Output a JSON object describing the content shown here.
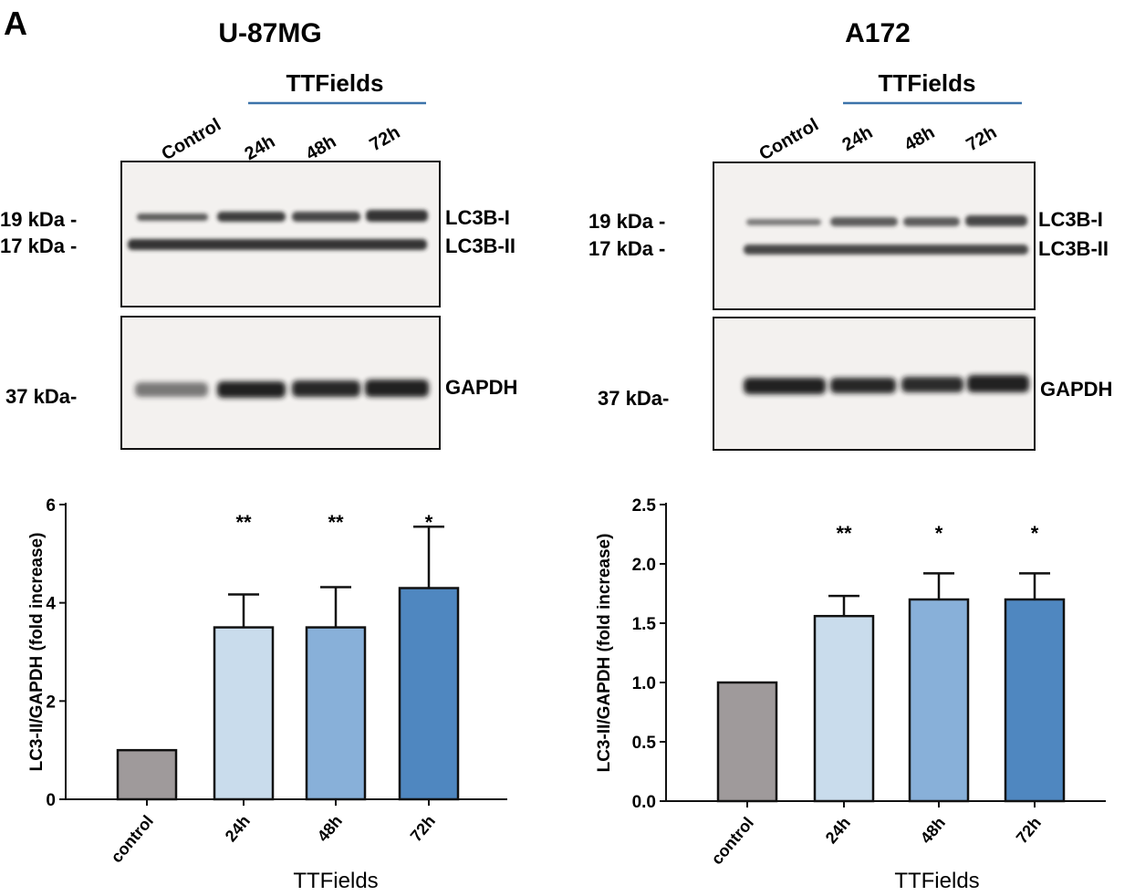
{
  "panel_label": "A",
  "blots": [
    {
      "cell_line": "U-87MG",
      "group_label": "TTFields",
      "lanes": [
        "Control",
        "24h",
        "48h",
        "72h"
      ],
      "markers": [
        "19 kDa -",
        "17 kDa -",
        "37 kDa-"
      ],
      "band_labels": [
        "LC3B-I",
        "LC3B-II",
        "GAPDH"
      ]
    },
    {
      "cell_line": "A172",
      "group_label": "TTFields",
      "lanes": [
        "Control",
        "24h",
        "48h",
        "72h"
      ],
      "markers": [
        "19 kDa -",
        "17 kDa -",
        "37 kDa-"
      ],
      "band_labels": [
        "LC3B-I",
        "LC3B-II",
        "GAPDH"
      ]
    }
  ],
  "chart_data": [
    {
      "type": "bar",
      "categories": [
        "control",
        "24h",
        "48h",
        "72h"
      ],
      "values": [
        1.0,
        3.5,
        3.5,
        4.3
      ],
      "errors": [
        0,
        0.67,
        0.82,
        1.25
      ],
      "significance": [
        "",
        "**",
        "**",
        "*"
      ],
      "colors": [
        "#9f9a9b",
        "#c9dcec",
        "#88b0d9",
        "#4f87c0"
      ],
      "xlabel": "TTFields",
      "ylabel": "LC3-II/GAPDH (fold increase)",
      "ylim": [
        0,
        6
      ],
      "yticks": [
        "0",
        "2",
        "4",
        "6"
      ],
      "ytick_values": [
        0,
        2,
        4,
        6
      ],
      "grid": false
    },
    {
      "type": "bar",
      "categories": [
        "control",
        "24h",
        "48h",
        "72h"
      ],
      "values": [
        1.0,
        1.56,
        1.7,
        1.7
      ],
      "errors": [
        0,
        0.17,
        0.22,
        0.22
      ],
      "significance": [
        "",
        "**",
        "*",
        "*"
      ],
      "colors": [
        "#9f9a9b",
        "#c9dcec",
        "#88b0d9",
        "#4f87c0"
      ],
      "xlabel": "TTFields",
      "ylabel": "LC3-II/GAPDH (fold increase)",
      "ylim": [
        0,
        2.5
      ],
      "yticks": [
        "0.0",
        "0.5",
        "1.0",
        "1.5",
        "2.0",
        "2.5"
      ],
      "ytick_values": [
        0,
        0.5,
        1.0,
        1.5,
        2.0,
        2.5
      ],
      "grid": false
    }
  ]
}
